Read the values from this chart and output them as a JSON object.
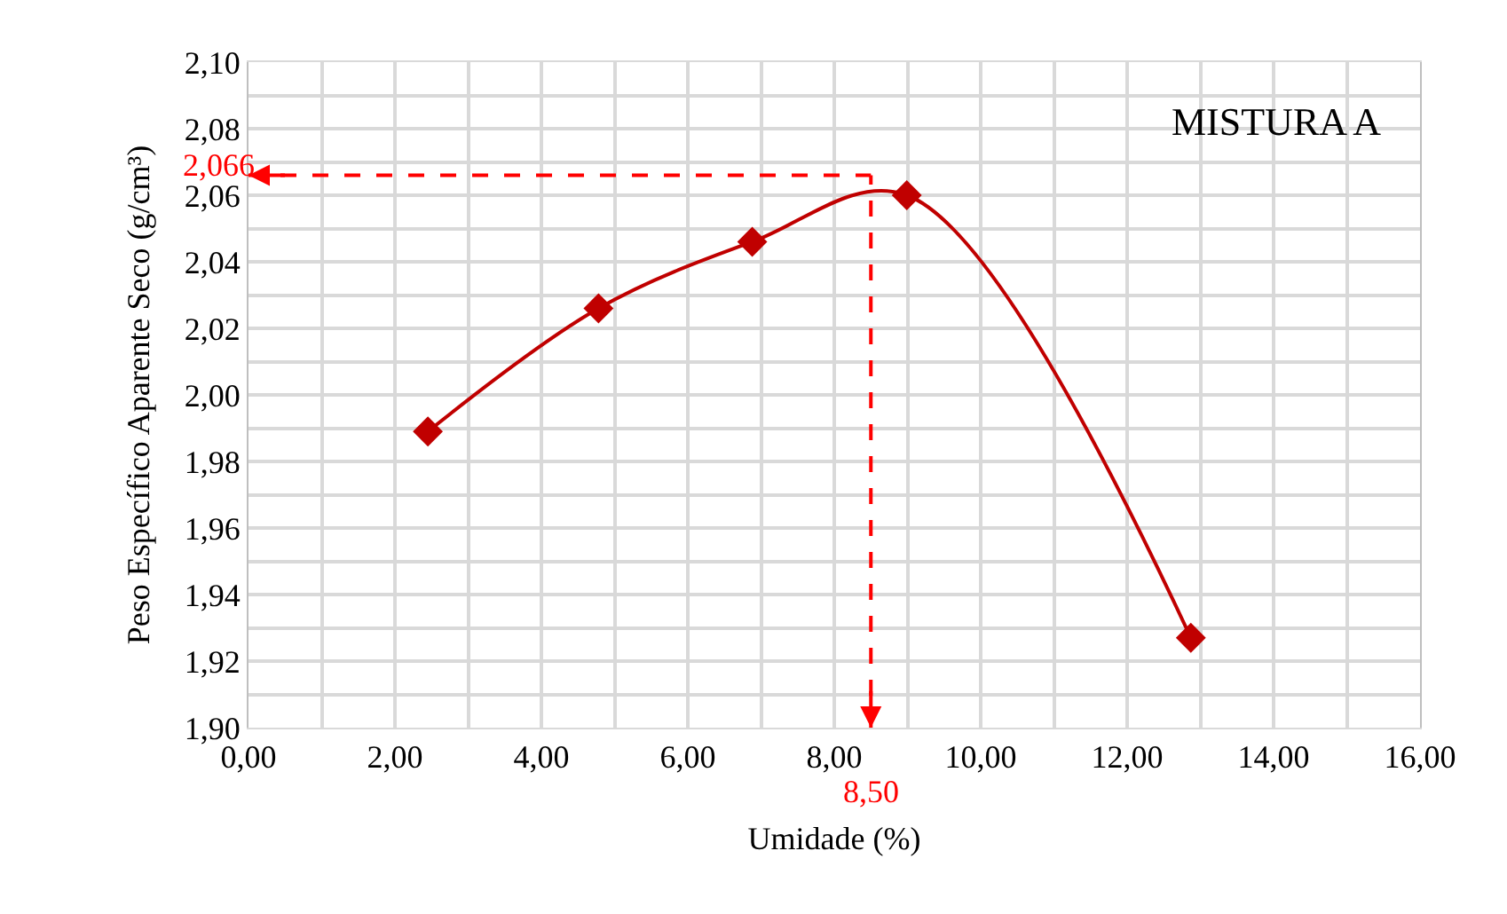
{
  "chart_data": {
    "type": "line",
    "xlabel": "Umidade (%)",
    "ylabel": "Peso Específico Aparente Seco (g/cm³)",
    "x": [
      2.45,
      4.78,
      6.88,
      8.99,
      12.87
    ],
    "series": [
      {
        "color": "#c00000",
        "values": [
          1.989,
          2.026,
          2.046,
          2.06,
          1.927
        ]
      }
    ],
    "xlim": [
      0,
      16
    ],
    "ylim": [
      1.9,
      2.1
    ],
    "xticks": [
      {
        "value": 0,
        "label": "0,00"
      },
      {
        "value": 2,
        "label": "2,00"
      },
      {
        "value": 4,
        "label": "4,00"
      },
      {
        "value": 6,
        "label": "6,00"
      },
      {
        "value": 8,
        "label": "8,00"
      },
      {
        "value": 10,
        "label": "10,00"
      },
      {
        "value": 12,
        "label": "12,00"
      },
      {
        "value": 14,
        "label": "14,00"
      },
      {
        "value": 16,
        "label": "16,00"
      }
    ],
    "yticks": [
      {
        "value": 1.9,
        "label": "1,90"
      },
      {
        "value": 1.92,
        "label": "1,92"
      },
      {
        "value": 1.94,
        "label": "1,94"
      },
      {
        "value": 1.96,
        "label": "1,96"
      },
      {
        "value": 1.98,
        "label": "1,98"
      },
      {
        "value": 2,
        "label": "2,00"
      },
      {
        "value": 2.02,
        "label": "2,02"
      },
      {
        "value": 2.04,
        "label": "2,04"
      },
      {
        "value": 2.06,
        "label": "2,06"
      },
      {
        "value": 2.08,
        "label": "2,08"
      },
      {
        "value": 2.1,
        "label": "2,10"
      }
    ],
    "ref_lines": [
      {
        "axis": "y",
        "value": 2.066,
        "label": "2,066",
        "color": "#ff0000",
        "line_style": "dashed"
      },
      {
        "axis": "x",
        "value": 8.5,
        "label": "8,50",
        "color": "#ff0000",
        "line_style": "dashed"
      }
    ],
    "annotations": [
      "MISTURA A"
    ],
    "grid": true,
    "legend": false,
    "marker": "diamond",
    "line_style": "solid"
  }
}
